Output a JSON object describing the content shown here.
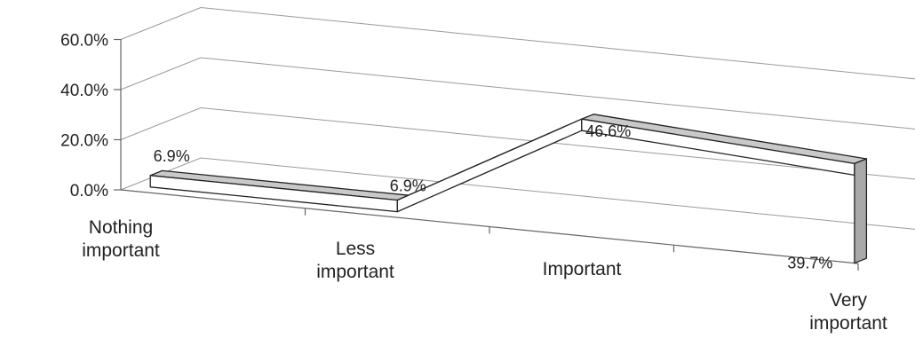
{
  "chart_data": {
    "type": "line",
    "style": "3d-ribbon",
    "title": "",
    "xlabel": "",
    "ylabel": "",
    "categories": [
      [
        "Nothing",
        "important"
      ],
      [
        "Less",
        "important"
      ],
      [
        "Important"
      ],
      [
        "Very",
        "important"
      ]
    ],
    "values": [
      6.9,
      6.9,
      46.6,
      39.7
    ],
    "data_labels": [
      "6.9%",
      "6.9%",
      "46.6%",
      "39.7%"
    ],
    "yticks": [
      "0.0%",
      "20.0%",
      "40.0%",
      "60.0%"
    ],
    "ylim": [
      0,
      60
    ],
    "grid": true,
    "legend": "none",
    "colors": {
      "ribbon_top": "#c9c9c9",
      "ribbon_front": "#ffffff",
      "ribbon_end": "#a9a9a9",
      "gridline": "#9a9a9a"
    }
  }
}
